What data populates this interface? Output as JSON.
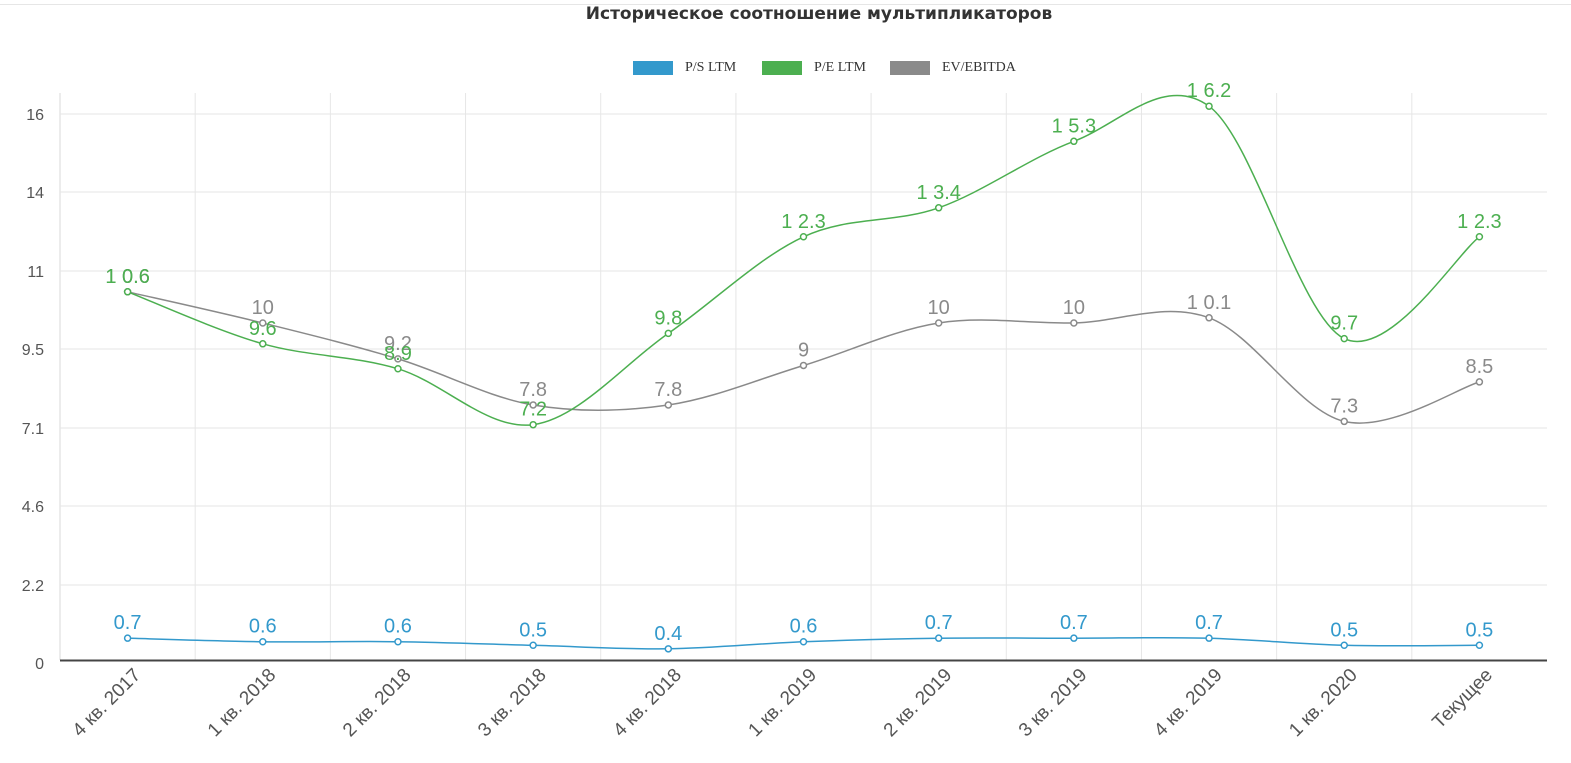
{
  "chart_data": {
    "type": "line",
    "title": "Историческое соотношение мультипликаторов",
    "categories": [
      "4 кв. 2017",
      "1 кв. 2018",
      "2 кв. 2018",
      "3 кв. 2018",
      "4 кв. 2018",
      "1 кв. 2019",
      "2 кв. 2019",
      "3 кв. 2019",
      "4 кв. 2019",
      "1 кв. 2020",
      "Текущее"
    ],
    "y_ticks": [
      "0",
      "2.2",
      "4.6",
      "7.1",
      "9.5",
      "11",
      "14",
      "16"
    ],
    "legend_position": "top-center",
    "grid": true,
    "series": [
      {
        "name": "P/S LTM",
        "color": "#3399cc",
        "values": [
          0.7,
          0.6,
          0.6,
          0.5,
          0.4,
          0.6,
          0.7,
          0.7,
          0.7,
          0.5,
          0.5
        ],
        "labels": [
          "0.7",
          "0.6",
          "0.6",
          "0.5",
          "0.4",
          "0.6",
          "0.7",
          "0.7",
          "0.7",
          "0.5",
          "0.5"
        ]
      },
      {
        "name": "P/E LTM",
        "color": "#4caf50",
        "values": [
          10.6,
          9.6,
          8.9,
          7.2,
          9.8,
          12.3,
          13.4,
          15.3,
          16.2,
          9.7,
          12.3
        ],
        "labels": [
          "1 0.6",
          "9.6",
          "8.9",
          "7.2",
          "9.8",
          "1 2.3",
          "1 3.4",
          "1 5.3",
          "1 6.2",
          "9.7",
          "1 2.3"
        ]
      },
      {
        "name": "EV/EBITDA",
        "color": "#8a8a8a",
        "values": [
          10.6,
          10,
          9.2,
          7.8,
          7.8,
          9,
          10,
          10,
          10.1,
          7.3,
          8.5
        ],
        "labels": [
          "1 0.6",
          "10",
          "9.2",
          "7.8",
          "7.8",
          "9",
          "10",
          "10",
          "1 0.1",
          "7.3",
          "8.5"
        ]
      }
    ]
  }
}
